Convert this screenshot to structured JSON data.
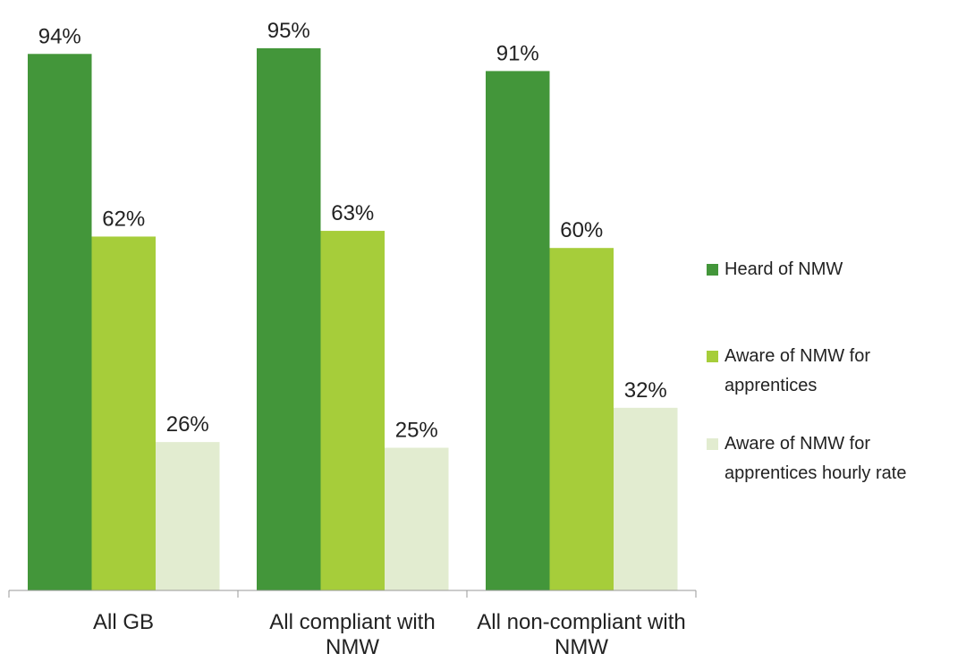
{
  "chart_data": {
    "type": "bar",
    "categories": [
      "All GB",
      "All compliant with NMW",
      "All non-compliant with NMW"
    ],
    "series": [
      {
        "name": "Heard of NMW",
        "color": "#43963a",
        "values": [
          94,
          95,
          91
        ],
        "value_labels": [
          "94%",
          "95%",
          "91%"
        ]
      },
      {
        "name": "Aware of NMW for apprentices",
        "color": "#a6cd3a",
        "values": [
          62,
          63,
          60
        ],
        "value_labels": [
          "62%",
          "63%",
          "60%"
        ]
      },
      {
        "name": "Aware of NMW for apprentices hourly rate",
        "color": "#e2ecd0",
        "values": [
          26,
          25,
          32
        ],
        "value_labels": [
          "26%",
          "25%",
          "32%"
        ]
      }
    ],
    "legend": "right"
  }
}
